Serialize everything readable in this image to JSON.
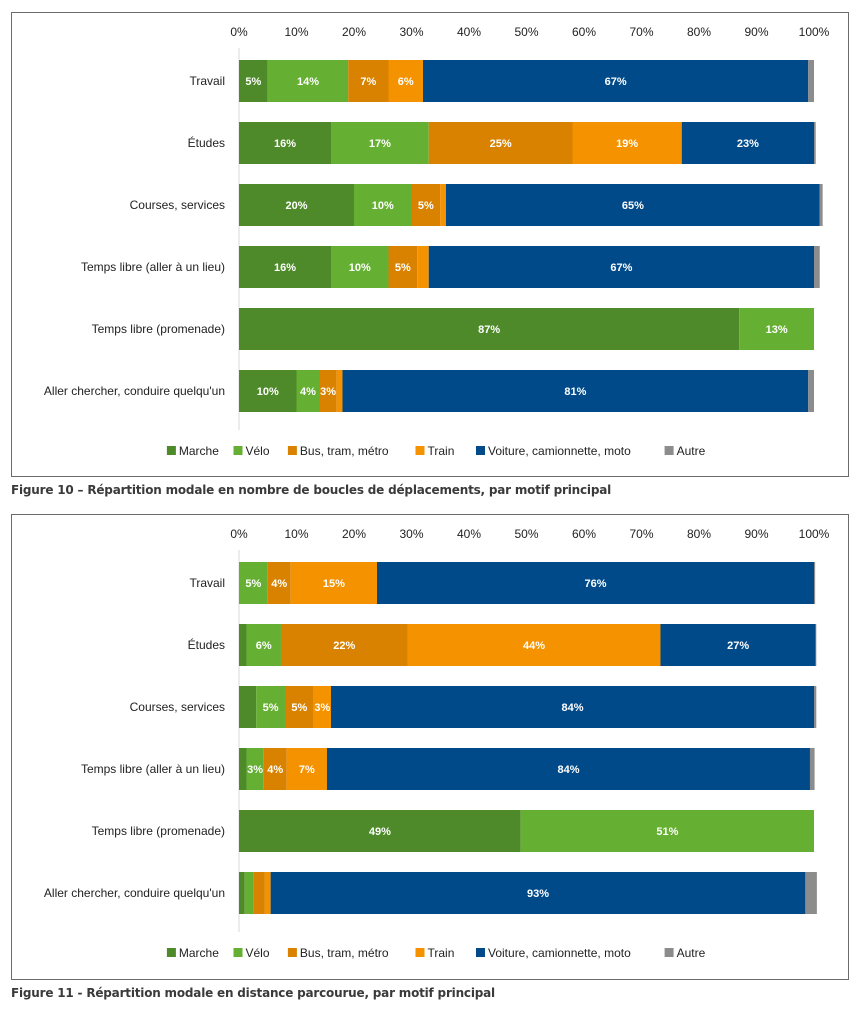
{
  "colors": {
    "Marche": "#4e8a29",
    "Vélo": "#65b032",
    "Bus, tram, métro": "#d98200",
    "Train": "#f59200",
    "Voiture, camionnette, moto": "#004a8a",
    "Autre": "#8c8c8c"
  },
  "captions": {
    "figure10": "Figure 10 – Répartition modale en nombre de boucles de déplacements, par motif principal",
    "figure11": "Figure 11 - Répartition modale en distance parcourue, par motif principal"
  },
  "chart_data": [
    {
      "type": "bar",
      "orientation": "horizontal",
      "stacked": true,
      "title": "Figure 10 – Répartition modale en nombre de boucles de déplacements, par motif principal",
      "xlabel": "",
      "ylabel": "",
      "xlim": [
        0,
        100
      ],
      "x_ticks": [
        "0%",
        "10%",
        "20%",
        "30%",
        "40%",
        "50%",
        "60%",
        "70%",
        "80%",
        "90%",
        "100%"
      ],
      "x_axis_position": "top",
      "legend_position": "bottom",
      "grid": false,
      "categories": [
        "Travail",
        "Études",
        "Courses, services",
        "Temps libre (aller à un lieu)",
        "Temps libre (promenade)",
        "Aller chercher, conduire quelqu'un"
      ],
      "series": [
        {
          "name": "Marche",
          "values": [
            5,
            16,
            20,
            16,
            87,
            10
          ],
          "labels": [
            "5%",
            "16%",
            "20%",
            "16%",
            "87%",
            "10%"
          ]
        },
        {
          "name": "Vélo",
          "values": [
            14,
            17,
            10,
            10,
            13,
            4
          ],
          "labels": [
            "14%",
            "17%",
            "10%",
            "10%",
            "13%",
            "4%"
          ]
        },
        {
          "name": "Bus, tram, métro",
          "values": [
            7,
            25,
            5,
            5,
            0,
            3
          ],
          "labels": [
            "7%",
            "25%",
            "5%",
            "5%",
            "",
            "3%"
          ]
        },
        {
          "name": "Train",
          "values": [
            6,
            19,
            1,
            2,
            0,
            1
          ],
          "labels": [
            "6%",
            "19%",
            "",
            "",
            "",
            ""
          ]
        },
        {
          "name": "Voiture, camionnette, moto",
          "values": [
            67,
            23,
            65,
            67,
            0,
            81
          ],
          "labels": [
            "67%",
            "23%",
            "65%",
            "67%",
            "",
            "81%"
          ]
        },
        {
          "name": "Autre",
          "values": [
            1,
            0.3,
            0.5,
            1,
            0,
            1
          ],
          "labels": [
            "",
            "",
            "",
            "",
            "",
            ""
          ]
        }
      ]
    },
    {
      "type": "bar",
      "orientation": "horizontal",
      "stacked": true,
      "title": "Figure 11 - Répartition modale en distance parcourue, par motif principal",
      "xlabel": "",
      "ylabel": "",
      "xlim": [
        0,
        100
      ],
      "x_ticks": [
        "0%",
        "10%",
        "20%",
        "30%",
        "40%",
        "50%",
        "60%",
        "70%",
        "80%",
        "90%",
        "100%"
      ],
      "x_axis_position": "top",
      "legend_position": "bottom",
      "grid": false,
      "categories": [
        "Travail",
        "Études",
        "Courses, services",
        "Temps libre (aller à un lieu)",
        "Temps libre (promenade)",
        "Aller chercher, conduire quelqu'un"
      ],
      "series": [
        {
          "name": "Marche",
          "values": [
            0,
            1.3,
            3,
            1.3,
            49,
            1
          ],
          "labels": [
            "",
            "",
            "",
            "",
            "49%",
            ""
          ]
        },
        {
          "name": "Vélo",
          "values": [
            5,
            6,
            5,
            3,
            51,
            1.5
          ],
          "labels": [
            "5%",
            "6%",
            "5%",
            "3%",
            "51%",
            ""
          ]
        },
        {
          "name": "Bus, tram, métro",
          "values": [
            4,
            22,
            5,
            4,
            0,
            2
          ],
          "labels": [
            "4%",
            "22%",
            "5%",
            "4%",
            "",
            ""
          ]
        },
        {
          "name": "Train",
          "values": [
            15,
            44,
            3,
            7,
            0,
            1
          ],
          "labels": [
            "15%",
            "44%",
            "3%",
            "7%",
            "",
            ""
          ]
        },
        {
          "name": "Voiture, camionnette, moto",
          "values": [
            76,
            27,
            84,
            84,
            0,
            93
          ],
          "labels": [
            "76%",
            "27%",
            "84%",
            "84%",
            "",
            "93%"
          ]
        },
        {
          "name": "Autre",
          "values": [
            0.2,
            0.1,
            0.4,
            0.8,
            0,
            2
          ],
          "labels": [
            "",
            "",
            "",
            "",
            "",
            ""
          ]
        }
      ]
    }
  ]
}
